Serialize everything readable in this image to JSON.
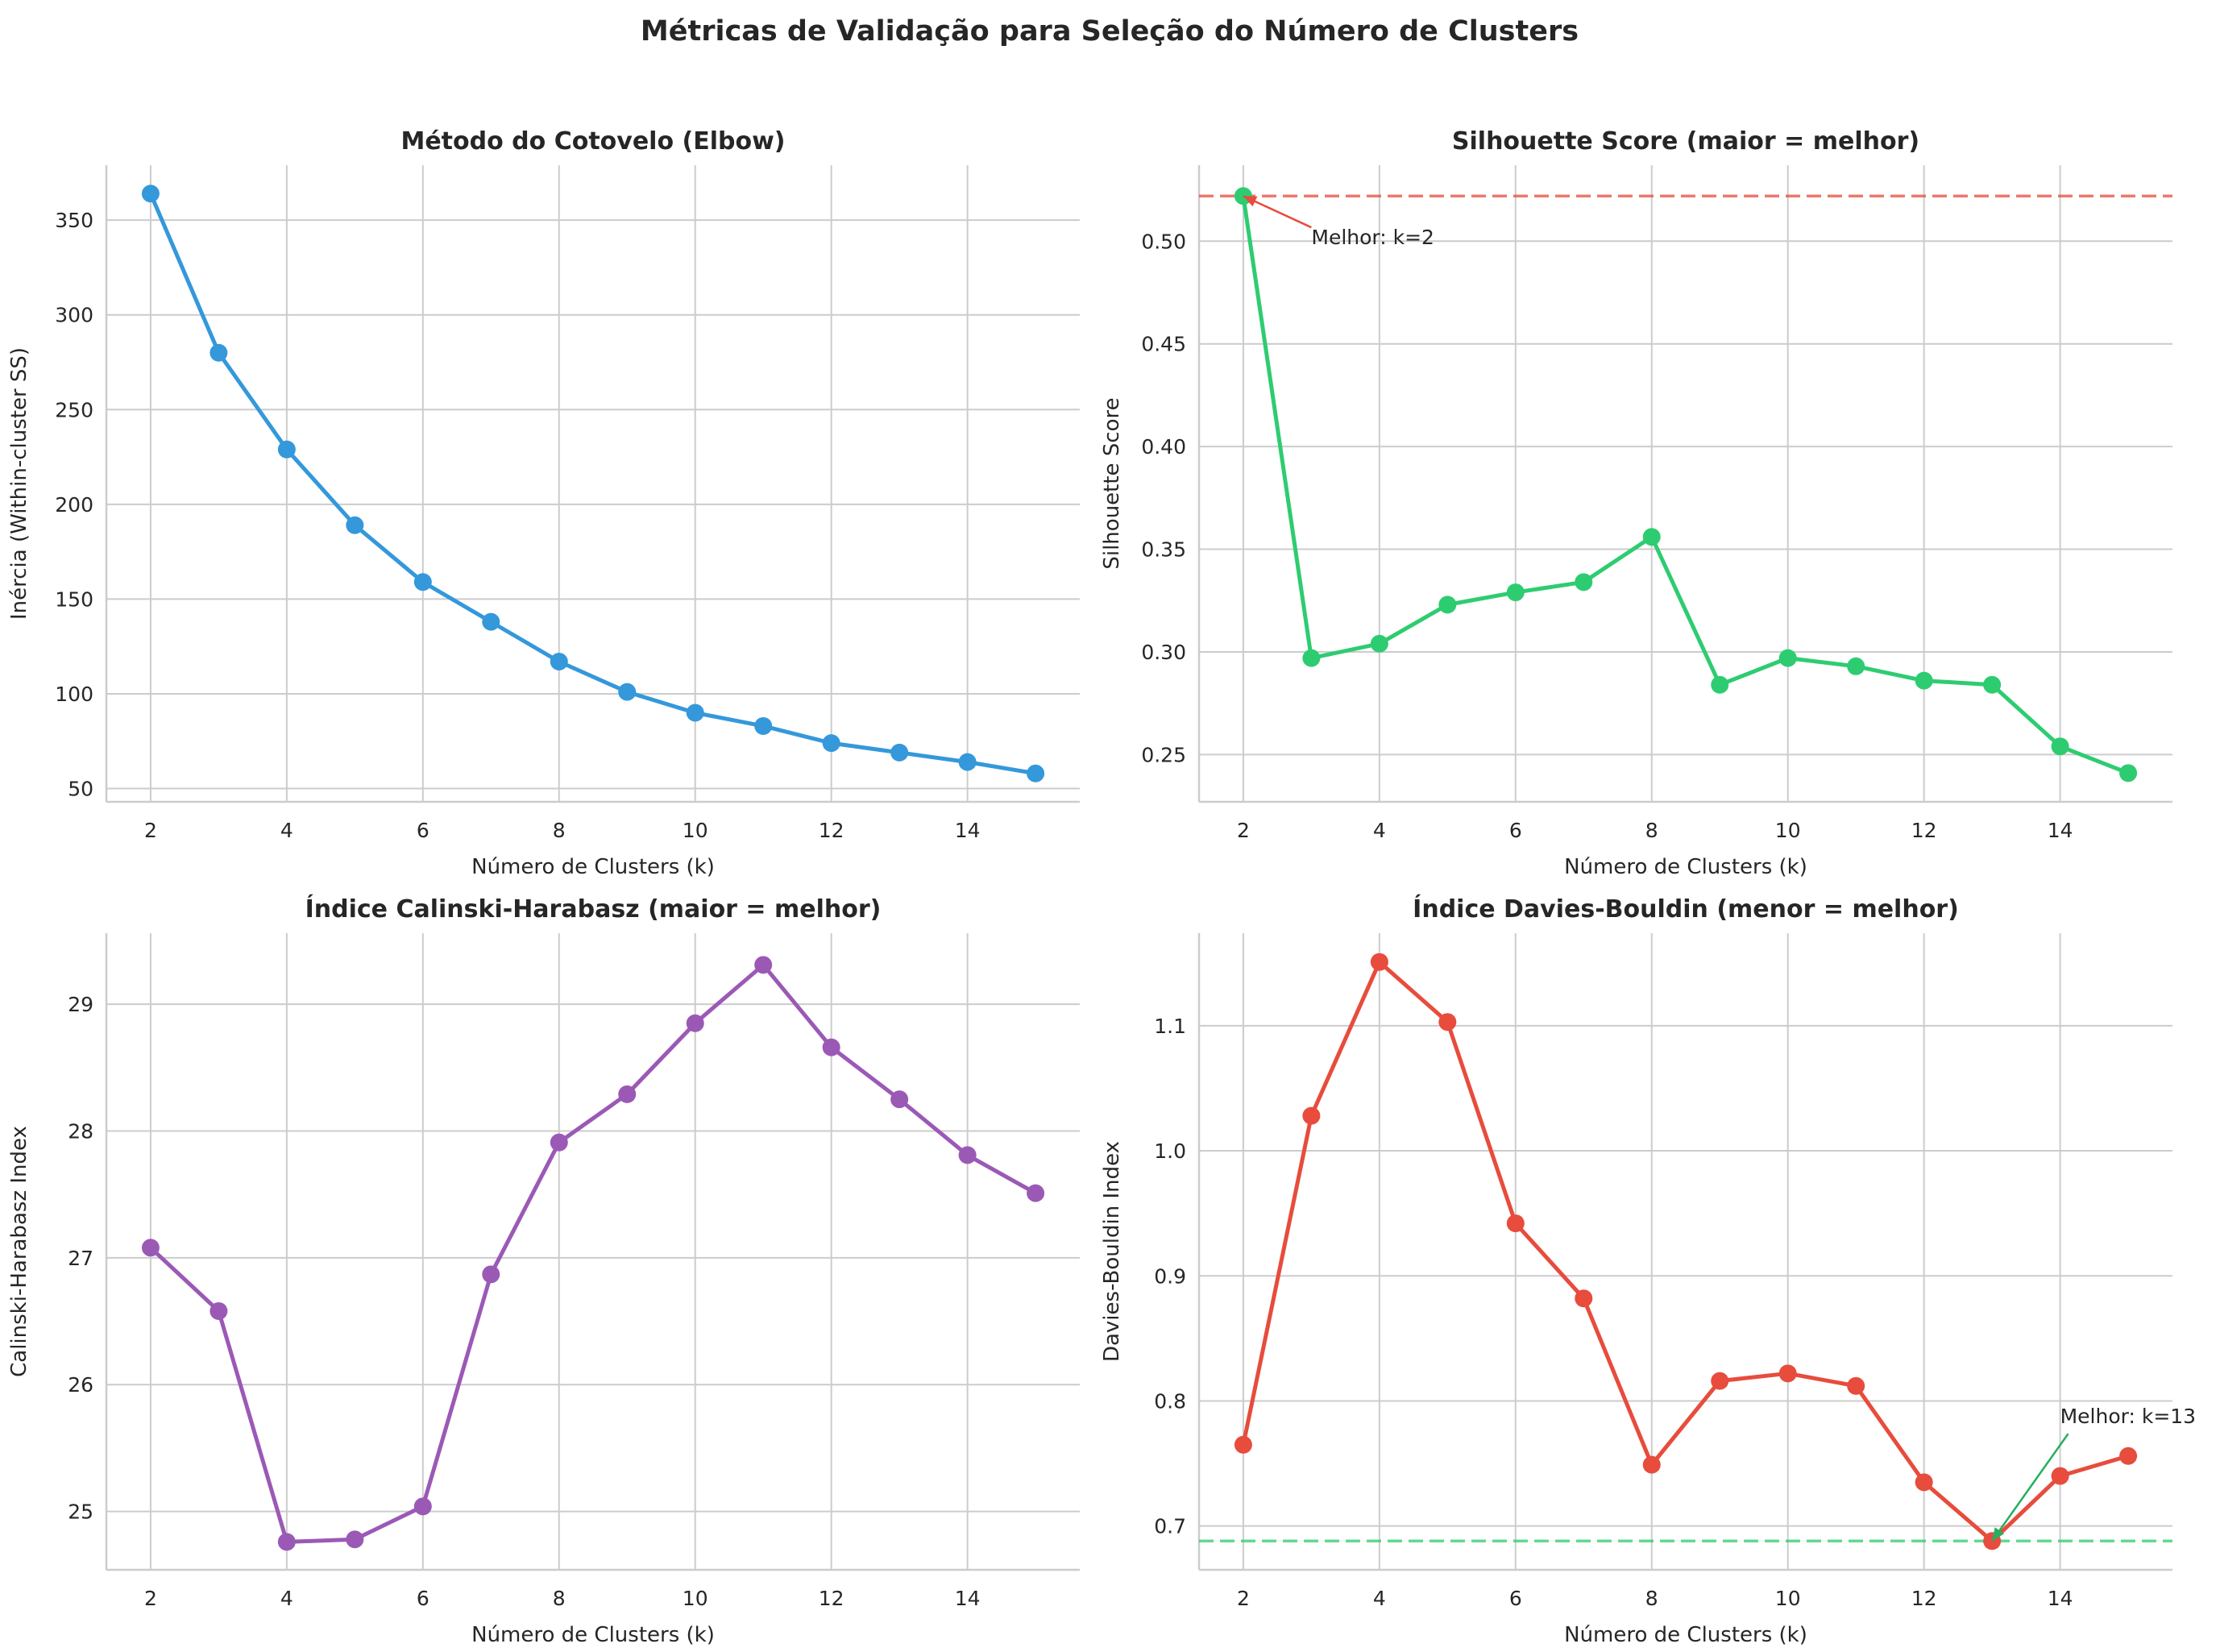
{
  "suptitle": "Métricas de Validação para Seleção do Número de Clusters",
  "chart_data": [
    {
      "type": "line",
      "title": "Método do Cotovelo (Elbow)",
      "xlabel": "Número de Clusters (k)",
      "ylabel": "Inércia (Within-cluster SS)",
      "color": "#3498db",
      "x": [
        2,
        3,
        4,
        5,
        6,
        7,
        8,
        9,
        10,
        11,
        12,
        13,
        14,
        15
      ],
      "values": [
        364,
        280,
        229,
        189,
        159,
        138,
        117,
        101,
        90,
        83,
        74,
        69,
        64,
        58
      ],
      "xlim": [
        1.35,
        15.65
      ],
      "ylim": [
        43,
        379
      ],
      "xticks": [
        2,
        4,
        6,
        8,
        10,
        12,
        14
      ],
      "yticks": [
        50,
        100,
        150,
        200,
        250,
        300,
        350
      ],
      "ytick_labels": [
        "50",
        "100",
        "150",
        "200",
        "250",
        "300",
        "350"
      ],
      "grid": true
    },
    {
      "type": "line",
      "title": "Silhouette Score (maior = melhor)",
      "xlabel": "Número de Clusters (k)",
      "ylabel": "Silhouette Score",
      "color": "#2ecc71",
      "x": [
        2,
        3,
        4,
        5,
        6,
        7,
        8,
        9,
        10,
        11,
        12,
        13,
        14,
        15
      ],
      "values": [
        0.522,
        0.297,
        0.304,
        0.323,
        0.329,
        0.334,
        0.356,
        0.284,
        0.297,
        0.293,
        0.286,
        0.284,
        0.254,
        0.241
      ],
      "xlim": [
        1.35,
        15.65
      ],
      "ylim": [
        0.227,
        0.537
      ],
      "xticks": [
        2,
        4,
        6,
        8,
        10,
        12,
        14
      ],
      "yticks": [
        0.25,
        0.3,
        0.35,
        0.4,
        0.45,
        0.5
      ],
      "ytick_labels": [
        "0.25",
        "0.30",
        "0.35",
        "0.40",
        "0.45",
        "0.50"
      ],
      "grid": true,
      "reference_line": {
        "y": 0.522,
        "color": "#e74c3c"
      },
      "annotation": {
        "text": "Melhor: k=2",
        "x": 2,
        "y": 0.522,
        "text_x": 3.0,
        "text_y": 0.502,
        "color": "#e74c3c"
      }
    },
    {
      "type": "line",
      "title": "Índice Calinski-Harabasz (maior = melhor)",
      "xlabel": "Número de Clusters (k)",
      "ylabel": "Calinski-Harabasz Index",
      "color": "#9b59b6",
      "x": [
        2,
        3,
        4,
        5,
        6,
        7,
        8,
        9,
        10,
        11,
        12,
        13,
        14,
        15
      ],
      "values": [
        27.08,
        26.58,
        24.76,
        24.78,
        25.04,
        26.87,
        27.91,
        28.29,
        28.85,
        29.31,
        28.66,
        28.25,
        27.81,
        27.51
      ],
      "xlim": [
        1.35,
        15.65
      ],
      "ylim": [
        24.54,
        29.56
      ],
      "xticks": [
        2,
        4,
        6,
        8,
        10,
        12,
        14
      ],
      "yticks": [
        25,
        26,
        27,
        28,
        29
      ],
      "ytick_labels": [
        "25",
        "26",
        "27",
        "28",
        "29"
      ],
      "grid": true
    },
    {
      "type": "line",
      "title": "Índice Davies-Bouldin (menor = melhor)",
      "xlabel": "Número de Clusters (k)",
      "ylabel": "Davies-Bouldin Index",
      "color": "#e74c3c",
      "x": [
        2,
        3,
        4,
        5,
        6,
        7,
        8,
        9,
        10,
        11,
        12,
        13,
        14,
        15
      ],
      "values": [
        0.765,
        1.028,
        1.151,
        1.103,
        0.942,
        0.882,
        0.749,
        0.816,
        0.822,
        0.812,
        0.735,
        0.688,
        0.74,
        0.756
      ],
      "xlim": [
        1.35,
        15.65
      ],
      "ylim": [
        0.665,
        1.174
      ],
      "xticks": [
        2,
        4,
        6,
        8,
        10,
        12,
        14
      ],
      "yticks": [
        0.7,
        0.8,
        0.9,
        1.0,
        1.1
      ],
      "ytick_labels": [
        "0.7",
        "0.8",
        "0.9",
        "1.0",
        "1.1"
      ],
      "grid": true,
      "reference_line": {
        "y": 0.688,
        "color": "#2ecc71"
      },
      "annotation": {
        "text": "Melhor: k=13",
        "x": 13,
        "y": 0.688,
        "text_x": 14.0,
        "text_y": 0.788,
        "color": "#27ae60"
      }
    }
  ]
}
